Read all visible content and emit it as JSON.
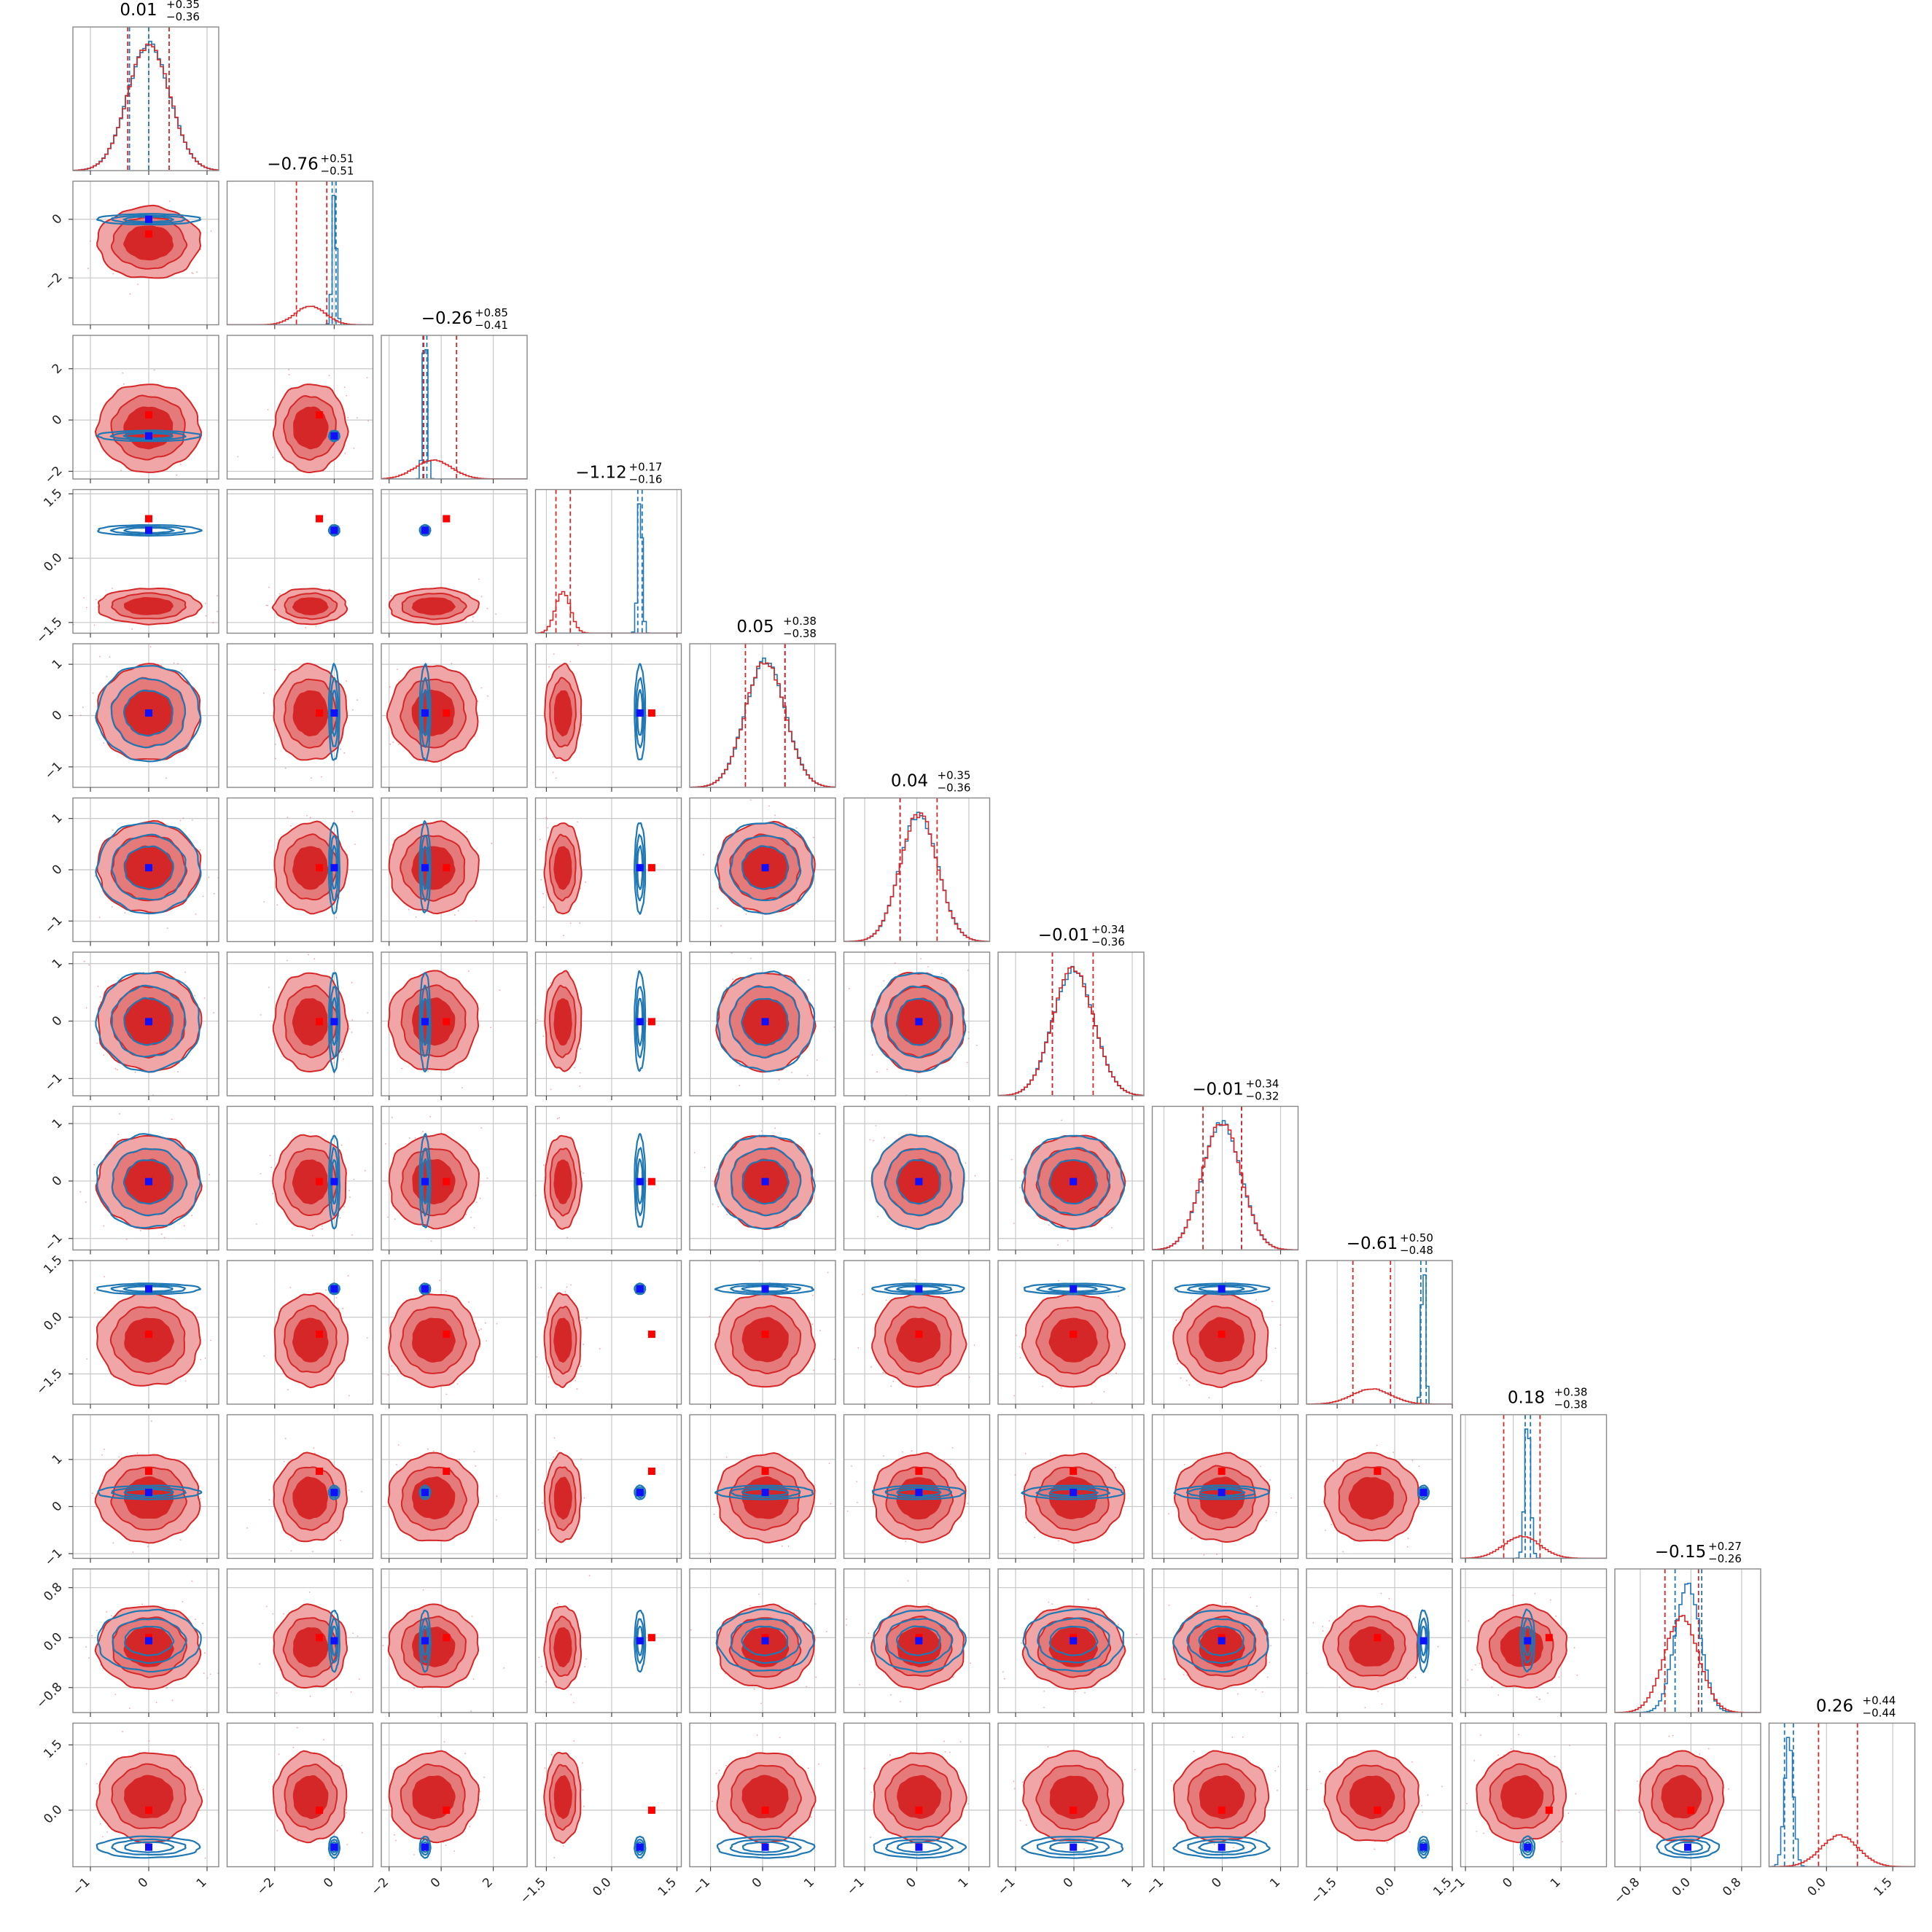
{
  "chart_data": {
    "type": "corner",
    "n_params": 12,
    "grid": true,
    "colors": {
      "red": "#d62728",
      "red_fill_outer": "#f0a6a6",
      "red_fill_inner": "#d62728",
      "blue": "#1f77b4",
      "blue_marker": "#1010ff",
      "red_marker": "#ff0000",
      "grid": "#c8c8c8",
      "frame": "#888888"
    },
    "params": [
      {
        "red": {
          "mean": 0.0,
          "sd": 0.36,
          "q": [
            -0.36,
            0.35
          ],
          "med": 0.01
        },
        "blue": {
          "mean": 0.0,
          "sd": 0.36,
          "q": [
            -0.33,
            0.0
          ]
        },
        "range": [
          -1.3,
          1.2
        ],
        "ticks": [
          -1,
          0,
          1
        ],
        "tick_labels": [
          "−1",
          "0",
          "1"
        ],
        "blue_marker": 0.0,
        "red_marker": 0.0,
        "title": {
          "main": "0.01",
          "sup": "+0.35",
          "sub": "−0.36"
        }
      },
      {
        "red": {
          "mean": -0.8,
          "sd": 0.5,
          "q": [
            -1.27,
            -0.25
          ],
          "med": -0.76
        },
        "blue": {
          "mean": 0.0,
          "sd": 0.07,
          "q": [
            -0.07,
            0.06
          ]
        },
        "range": [
          -3.6,
          1.3
        ],
        "ticks": [
          -2,
          0
        ],
        "tick_labels": [
          "−2",
          "0"
        ],
        "blue_marker": 0.0,
        "red_marker": -0.5,
        "title": {
          "main": "−0.76",
          "sup": "+0.51",
          "sub": "−0.51"
        }
      },
      {
        "red": {
          "mean": -0.3,
          "sd": 0.7,
          "q": [
            -0.67,
            0.59
          ],
          "med": -0.26
        },
        "blue": {
          "mean": -0.62,
          "sd": 0.08,
          "q": [
            -0.7,
            -0.55
          ]
        },
        "range": [
          -2.3,
          3.3
        ],
        "ticks": [
          -2,
          0,
          2
        ],
        "tick_labels": [
          "−2",
          "0",
          "2"
        ],
        "blue_marker": -0.62,
        "red_marker": 0.2,
        "title": {
          "main": "−0.26",
          "sup": "+0.85",
          "sub": "−0.41"
        }
      },
      {
        "red": {
          "mean": -1.12,
          "sd": 0.17,
          "q": [
            -1.28,
            -0.95
          ],
          "med": -1.12
        },
        "blue": {
          "mean": 0.65,
          "sd": 0.05,
          "q": [
            0.6,
            0.7
          ]
        },
        "range": [
          -1.75,
          1.6
        ],
        "ticks": [
          -1.5,
          0.0,
          1.5
        ],
        "tick_labels": [
          "−1.5",
          "0.0",
          "1.5"
        ],
        "blue_marker": 0.65,
        "red_marker": 0.92,
        "title": {
          "main": "−1.12",
          "sup": "+0.17",
          "sub": "−0.16"
        }
      },
      {
        "red": {
          "mean": 0.05,
          "sd": 0.38,
          "q": [
            -0.33,
            0.43
          ],
          "med": 0.05
        },
        "blue": {
          "mean": 0.05,
          "sd": 0.38,
          "q": [
            0.43,
            0.43
          ]
        },
        "range": [
          -1.4,
          1.4
        ],
        "ticks": [
          -1,
          0,
          1
        ],
        "tick_labels": [
          "−1",
          "0",
          "1"
        ],
        "blue_marker": 0.05,
        "red_marker": 0.05,
        "title": {
          "main": "0.05",
          "sup": "+0.38",
          "sub": "−0.38"
        }
      },
      {
        "red": {
          "mean": 0.04,
          "sd": 0.36,
          "q": [
            -0.32,
            0.39
          ],
          "med": 0.04
        },
        "blue": {
          "mean": 0.04,
          "sd": 0.36,
          "q": [
            -0.32,
            -0.32
          ]
        },
        "range": [
          -1.4,
          1.4
        ],
        "ticks": [
          -1,
          0,
          1
        ],
        "tick_labels": [
          "−1",
          "0",
          "1"
        ],
        "blue_marker": 0.04,
        "red_marker": 0.04,
        "title": {
          "main": "0.04",
          "sup": "+0.35",
          "sub": "−0.36"
        }
      },
      {
        "red": {
          "mean": -0.01,
          "sd": 0.35,
          "q": [
            -0.37,
            0.33
          ],
          "med": -0.01
        },
        "blue": {
          "mean": -0.01,
          "sd": 0.35,
          "q": [
            -0.37,
            -0.37
          ]
        },
        "range": [
          -1.3,
          1.2
        ],
        "ticks": [
          -1,
          0,
          1
        ],
        "tick_labels": [
          "−1",
          "0",
          "1"
        ],
        "blue_marker": -0.01,
        "red_marker": -0.01,
        "title": {
          "main": "−0.01",
          "sup": "+0.34",
          "sub": "−0.36"
        }
      },
      {
        "red": {
          "mean": -0.01,
          "sd": 0.33,
          "q": [
            -0.33,
            0.33
          ],
          "med": -0.01
        },
        "blue": {
          "mean": -0.01,
          "sd": 0.33,
          "q": [
            0.33,
            0.33
          ]
        },
        "range": [
          -1.2,
          1.3
        ],
        "ticks": [
          -1,
          0,
          1
        ],
        "tick_labels": [
          "−1",
          "0",
          "1"
        ],
        "blue_marker": -0.01,
        "red_marker": -0.01,
        "title": {
          "main": "−0.01",
          "sup": "+0.34",
          "sub": "−0.32"
        }
      },
      {
        "red": {
          "mean": -0.6,
          "sd": 0.5,
          "q": [
            -1.09,
            -0.11
          ],
          "med": -0.61
        },
        "blue": {
          "mean": 0.75,
          "sd": 0.05,
          "q": [
            0.68,
            0.82
          ]
        },
        "range": [
          -2.3,
          1.5
        ],
        "ticks": [
          -1.5,
          0.0,
          1.5
        ],
        "tick_labels": [
          "−1.5",
          "0.0",
          "1.5"
        ],
        "blue_marker": 0.75,
        "red_marker": -0.45,
        "title": {
          "main": "−0.61",
          "sup": "+0.50",
          "sub": "−0.48"
        }
      },
      {
        "red": {
          "mean": 0.18,
          "sd": 0.38,
          "q": [
            -0.2,
            0.56
          ],
          "med": 0.18
        },
        "blue": {
          "mean": 0.3,
          "sd": 0.06,
          "q": [
            0.25,
            0.36
          ]
        },
        "range": [
          -1.1,
          1.95
        ],
        "ticks": [
          -1,
          0,
          1
        ],
        "tick_labels": [
          "−1",
          "0",
          "1"
        ],
        "blue_marker": 0.3,
        "red_marker": 0.75,
        "title": {
          "main": "0.18",
          "sup": "+0.38",
          "sub": "−0.38"
        }
      },
      {
        "red": {
          "mean": -0.15,
          "sd": 0.27,
          "q": [
            -0.41,
            0.12
          ],
          "med": -0.15
        },
        "blue": {
          "mean": -0.05,
          "sd": 0.2,
          "q": [
            -0.25,
            0.17
          ]
        },
        "range": [
          -1.2,
          1.1
        ],
        "ticks": [
          -0.8,
          0.0,
          0.8
        ],
        "tick_labels": [
          "−0.8",
          "0.0",
          "0.8"
        ],
        "blue_marker": -0.05,
        "red_marker": 0.0,
        "title": {
          "main": "−0.15",
          "sup": "+0.27",
          "sub": "−0.26"
        }
      },
      {
        "red": {
          "mean": 0.3,
          "sd": 0.42,
          "q": [
            -0.18,
            0.7
          ],
          "med": 0.26
        },
        "blue": {
          "mean": -0.85,
          "sd": 0.1,
          "q": [
            -0.95,
            -0.75
          ]
        },
        "range": [
          -1.3,
          2.0
        ],
        "ticks": [
          0.0,
          1.5
        ],
        "tick_labels": [
          "0.0",
          "1.5"
        ],
        "blue_marker": -0.85,
        "red_marker": 0.0,
        "title": {
          "main": "0.26",
          "sup": "+0.44",
          "sub": "−0.44"
        }
      }
    ]
  }
}
